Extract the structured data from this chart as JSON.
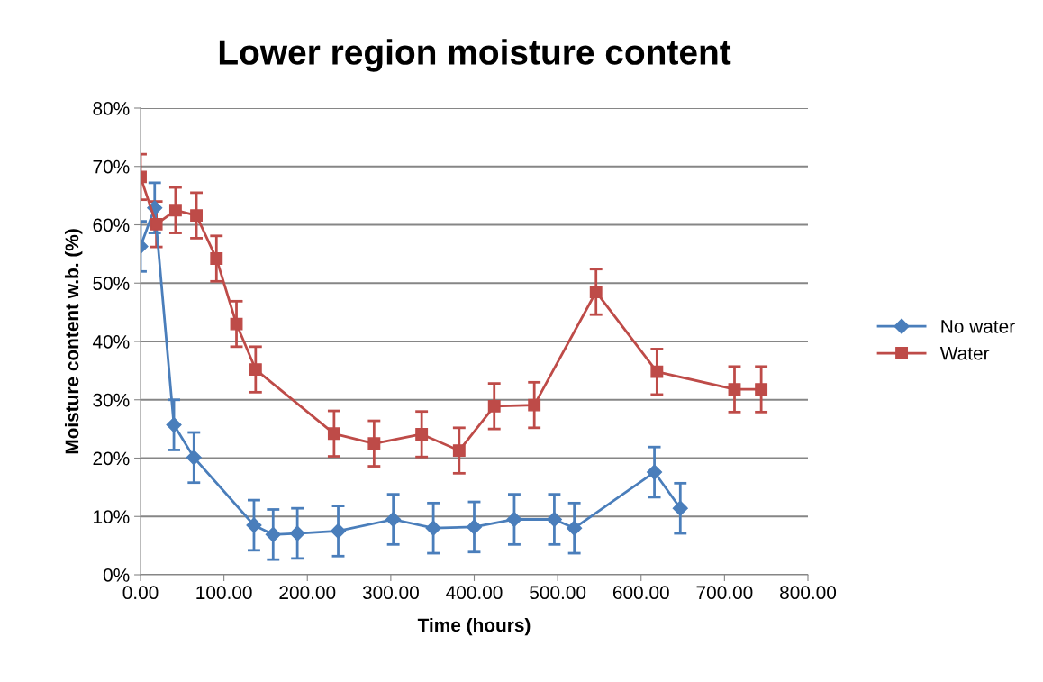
{
  "chart_data": {
    "type": "line",
    "title": "Lower region moisture content",
    "xlabel": "Time (hours)",
    "ylabel": "Moisture content w.b. (%)",
    "xlim": [
      0,
      800
    ],
    "xticks": [
      {
        "value": 0,
        "label": "0.00"
      },
      {
        "value": 100,
        "label": "100.00"
      },
      {
        "value": 200,
        "label": "200.00"
      },
      {
        "value": 300,
        "label": "300.00"
      },
      {
        "value": 400,
        "label": "400.00"
      },
      {
        "value": 500,
        "label": "500.00"
      },
      {
        "value": 600,
        "label": "600.00"
      },
      {
        "value": 700,
        "label": "700.00"
      },
      {
        "value": 800,
        "label": "800.00"
      }
    ],
    "ylim": [
      0,
      80
    ],
    "yticks": [
      {
        "value": 0,
        "label": "0%"
      },
      {
        "value": 10,
        "label": "10%"
      },
      {
        "value": 20,
        "label": "20%"
      },
      {
        "value": 30,
        "label": "30%"
      },
      {
        "value": 40,
        "label": "40%"
      },
      {
        "value": 50,
        "label": "50%"
      },
      {
        "value": 60,
        "label": "60%"
      },
      {
        "value": 70,
        "label": "70%"
      },
      {
        "value": 80,
        "label": "80%"
      }
    ],
    "grid": "y",
    "legend": "right",
    "line_style": "solid",
    "series": [
      {
        "name": "No water",
        "color": "#4a7ebb",
        "marker": "diamond",
        "x": [
          0,
          17,
          40,
          64,
          136,
          159,
          188,
          237,
          303,
          351,
          400,
          448,
          496,
          520,
          616,
          647
        ],
        "values": [
          56.3,
          62.9,
          25.7,
          20.1,
          8.5,
          6.9,
          7.1,
          7.5,
          9.5,
          8.0,
          8.2,
          9.5,
          9.5,
          8.0,
          17.6,
          11.4
        ],
        "errors": [
          4.3,
          4.3,
          4.3,
          4.3,
          4.3,
          4.3,
          4.3,
          4.3,
          4.3,
          4.3,
          4.3,
          4.3,
          4.3,
          4.3,
          4.3,
          4.3
        ]
      },
      {
        "name": "Water",
        "color": "#be4b48",
        "marker": "square",
        "x": [
          0,
          19,
          42,
          67,
          91,
          115,
          138,
          232,
          280,
          337,
          382,
          424,
          472,
          546,
          619,
          712,
          744
        ],
        "values": [
          68.2,
          60.1,
          62.5,
          61.6,
          54.2,
          43.0,
          35.2,
          24.2,
          22.5,
          24.1,
          21.3,
          28.9,
          29.1,
          48.5,
          34.8,
          31.8,
          31.8
        ],
        "errors": [
          3.9,
          3.9,
          3.9,
          3.9,
          3.9,
          3.9,
          3.9,
          3.9,
          3.9,
          3.9,
          3.9,
          3.9,
          3.9,
          3.9,
          3.9,
          3.9,
          3.9
        ]
      }
    ]
  }
}
